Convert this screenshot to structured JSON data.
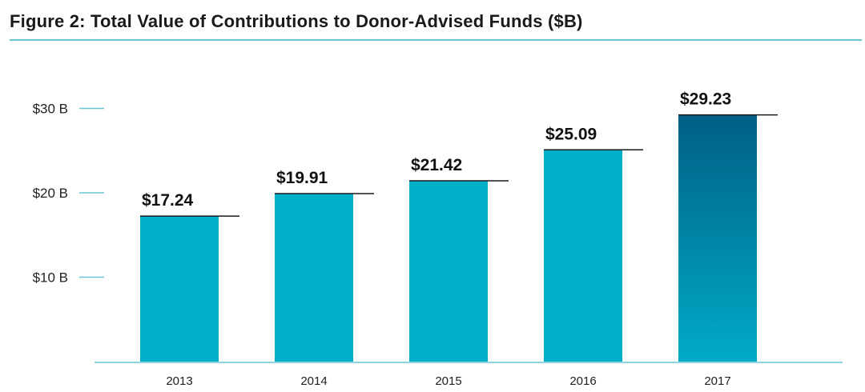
{
  "chart_data": {
    "type": "bar",
    "title": "Figure 2: Total Value of Contributions to Donor-Advised Funds ($B)",
    "categories": [
      "2013",
      "2014",
      "2015",
      "2016",
      "2017"
    ],
    "values": [
      17.24,
      19.91,
      21.42,
      25.09,
      29.23
    ],
    "data_labels": [
      "$17.24",
      "$19.91",
      "$21.42",
      "$25.09",
      "$29.23"
    ],
    "yticks": [
      {
        "value": 10,
        "label": "$10 B"
      },
      {
        "value": 20,
        "label": "$20 B"
      },
      {
        "value": 30,
        "label": "$30 B"
      }
    ],
    "xlabel": "",
    "ylabel": "",
    "ylim": [
      0,
      30
    ],
    "grid": false,
    "legend": "none",
    "colors": {
      "bar": "#00b0ca",
      "highlight_top": "#005f86",
      "highlight_bottom": "#00abc8",
      "tick_mark": "#6cc4d6",
      "baseline": "#6cc4d6",
      "label_line": "#1a1a1a"
    }
  }
}
